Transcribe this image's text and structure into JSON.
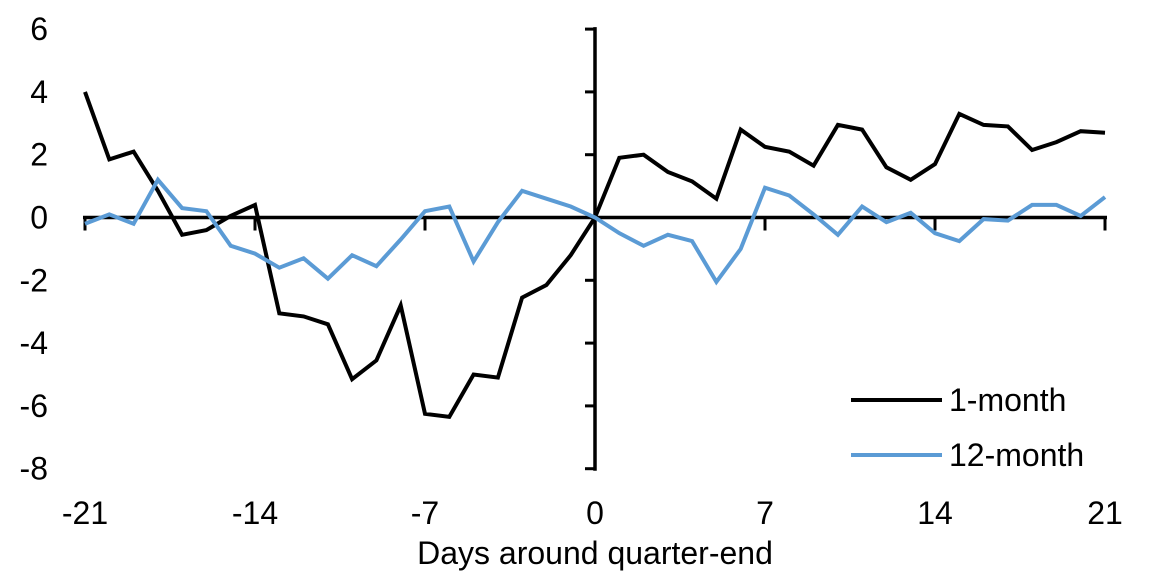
{
  "chart_data": {
    "type": "line",
    "title": "",
    "xlabel": "Days around quarter-end",
    "ylabel": "",
    "x_axis": {
      "min": -21,
      "max": 21,
      "ticks": [
        -21,
        -14,
        -7,
        0,
        7,
        14,
        21
      ]
    },
    "y_axis": {
      "min": -8,
      "max": 6,
      "ticks": [
        6,
        4,
        2,
        0,
        -2,
        -4,
        -6,
        -8
      ]
    },
    "grid": "off",
    "legend_position": "inside-bottom-right",
    "axis_color": "#000000",
    "background_color": "#ffffff",
    "x": [
      -21,
      -20,
      -19,
      -18,
      -17,
      -16,
      -15,
      -14,
      -13,
      -12,
      -11,
      -10,
      -9,
      -8,
      -7,
      -6,
      -5,
      -4,
      -3,
      -2,
      -1,
      0,
      1,
      2,
      3,
      4,
      5,
      6,
      7,
      8,
      9,
      10,
      11,
      12,
      13,
      14,
      15,
      16,
      17,
      18,
      19,
      20,
      21
    ],
    "series": [
      {
        "name": "1-month",
        "color": "#000000",
        "values": [
          4.0,
          1.85,
          2.1,
          0.85,
          -0.55,
          -0.4,
          0.05,
          0.4,
          -3.05,
          -3.15,
          -3.4,
          -5.15,
          -4.55,
          -2.8,
          -6.25,
          -6.35,
          -5.0,
          -5.1,
          -2.55,
          -2.15,
          -1.2,
          0.0,
          1.9,
          2.0,
          1.45,
          1.15,
          0.6,
          2.8,
          2.25,
          2.1,
          1.65,
          2.95,
          2.8,
          1.6,
          1.2,
          1.7,
          3.3,
          2.95,
          2.9,
          2.15,
          2.4,
          2.75,
          2.7
        ]
      },
      {
        "name": "12-month",
        "color": "#5B9BD5",
        "values": [
          -0.2,
          0.1,
          -0.2,
          1.2,
          0.3,
          0.2,
          -0.9,
          -1.15,
          -1.6,
          -1.3,
          -1.95,
          -1.2,
          -1.55,
          -0.7,
          0.2,
          0.35,
          -1.4,
          -0.15,
          0.85,
          0.6,
          0.35,
          0.0,
          -0.5,
          -0.9,
          -0.55,
          -0.75,
          -2.05,
          -1.0,
          0.95,
          0.7,
          0.1,
          -0.55,
          0.35,
          -0.15,
          0.15,
          -0.5,
          -0.75,
          -0.05,
          -0.1,
          0.4,
          0.4,
          0.05,
          0.65
        ]
      }
    ]
  }
}
